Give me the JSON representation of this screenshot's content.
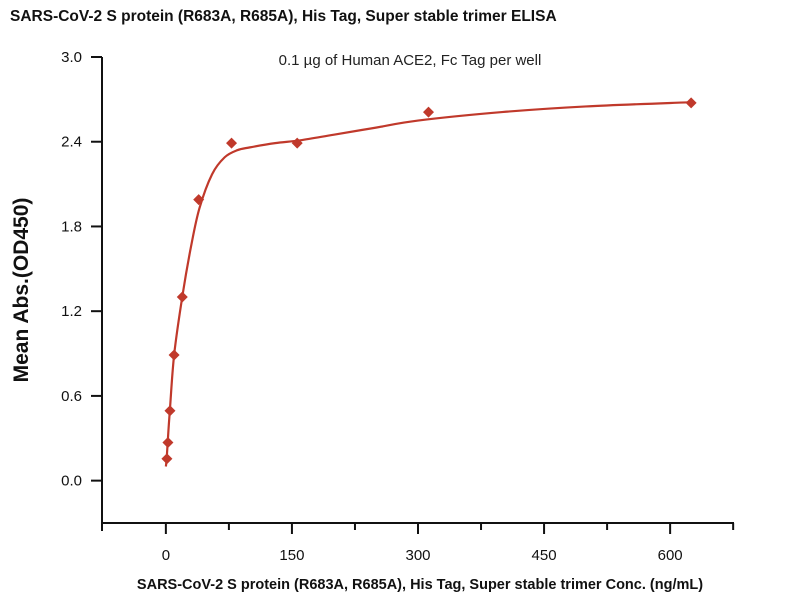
{
  "chart_data": {
    "type": "scatter",
    "title": "SARS-CoV-2 S protein (R683A, R685A), His Tag, Super stable trimer ELISA",
    "subtitle": "0.1 µg of Human ACE2, Fc Tag per well",
    "xlabel": "SARS-CoV-2 S protein (R683A, R685A), His Tag, Super stable trimer Conc. (ng/mL)",
    "ylabel": "Mean Abs.(OD450)",
    "xlim": [
      -76,
      676
    ],
    "ylim": [
      -0.3,
      3.0
    ],
    "xticks": [
      0,
      150,
      300,
      450,
      600
    ],
    "xtick_labels": [
      "0",
      "150",
      "300",
      "450",
      "600"
    ],
    "xminor": [
      75,
      225,
      375,
      525,
      675
    ],
    "yticks": [
      0.0,
      0.6,
      1.2,
      1.8,
      2.4,
      3.0
    ],
    "ytick_labels": [
      "0.0",
      "0.6",
      "1.2",
      "1.8",
      "2.4",
      "3.0"
    ],
    "grid": false,
    "color": "#c0392b",
    "marker": "diamond",
    "series": [
      {
        "name": "Mean Abs.(OD450)",
        "x": [
          1.22,
          2.44,
          4.88,
          9.77,
          19.53,
          39.06,
          78.13,
          156.25,
          312.5,
          625
        ],
        "y": [
          0.155,
          0.27,
          0.495,
          0.89,
          1.3,
          1.99,
          2.39,
          2.39,
          2.61,
          2.675
        ]
      }
    ],
    "fit_curve": {
      "x": [
        0,
        1,
        3,
        5,
        10,
        20,
        30,
        40,
        55,
        70,
        85,
        100,
        130,
        160,
        200,
        250,
        300,
        400,
        500,
        625
      ],
      "y": [
        0.1,
        0.16,
        0.35,
        0.52,
        0.9,
        1.32,
        1.66,
        1.93,
        2.17,
        2.29,
        2.34,
        2.36,
        2.39,
        2.41,
        2.45,
        2.5,
        2.55,
        2.61,
        2.65,
        2.68
      ]
    }
  }
}
